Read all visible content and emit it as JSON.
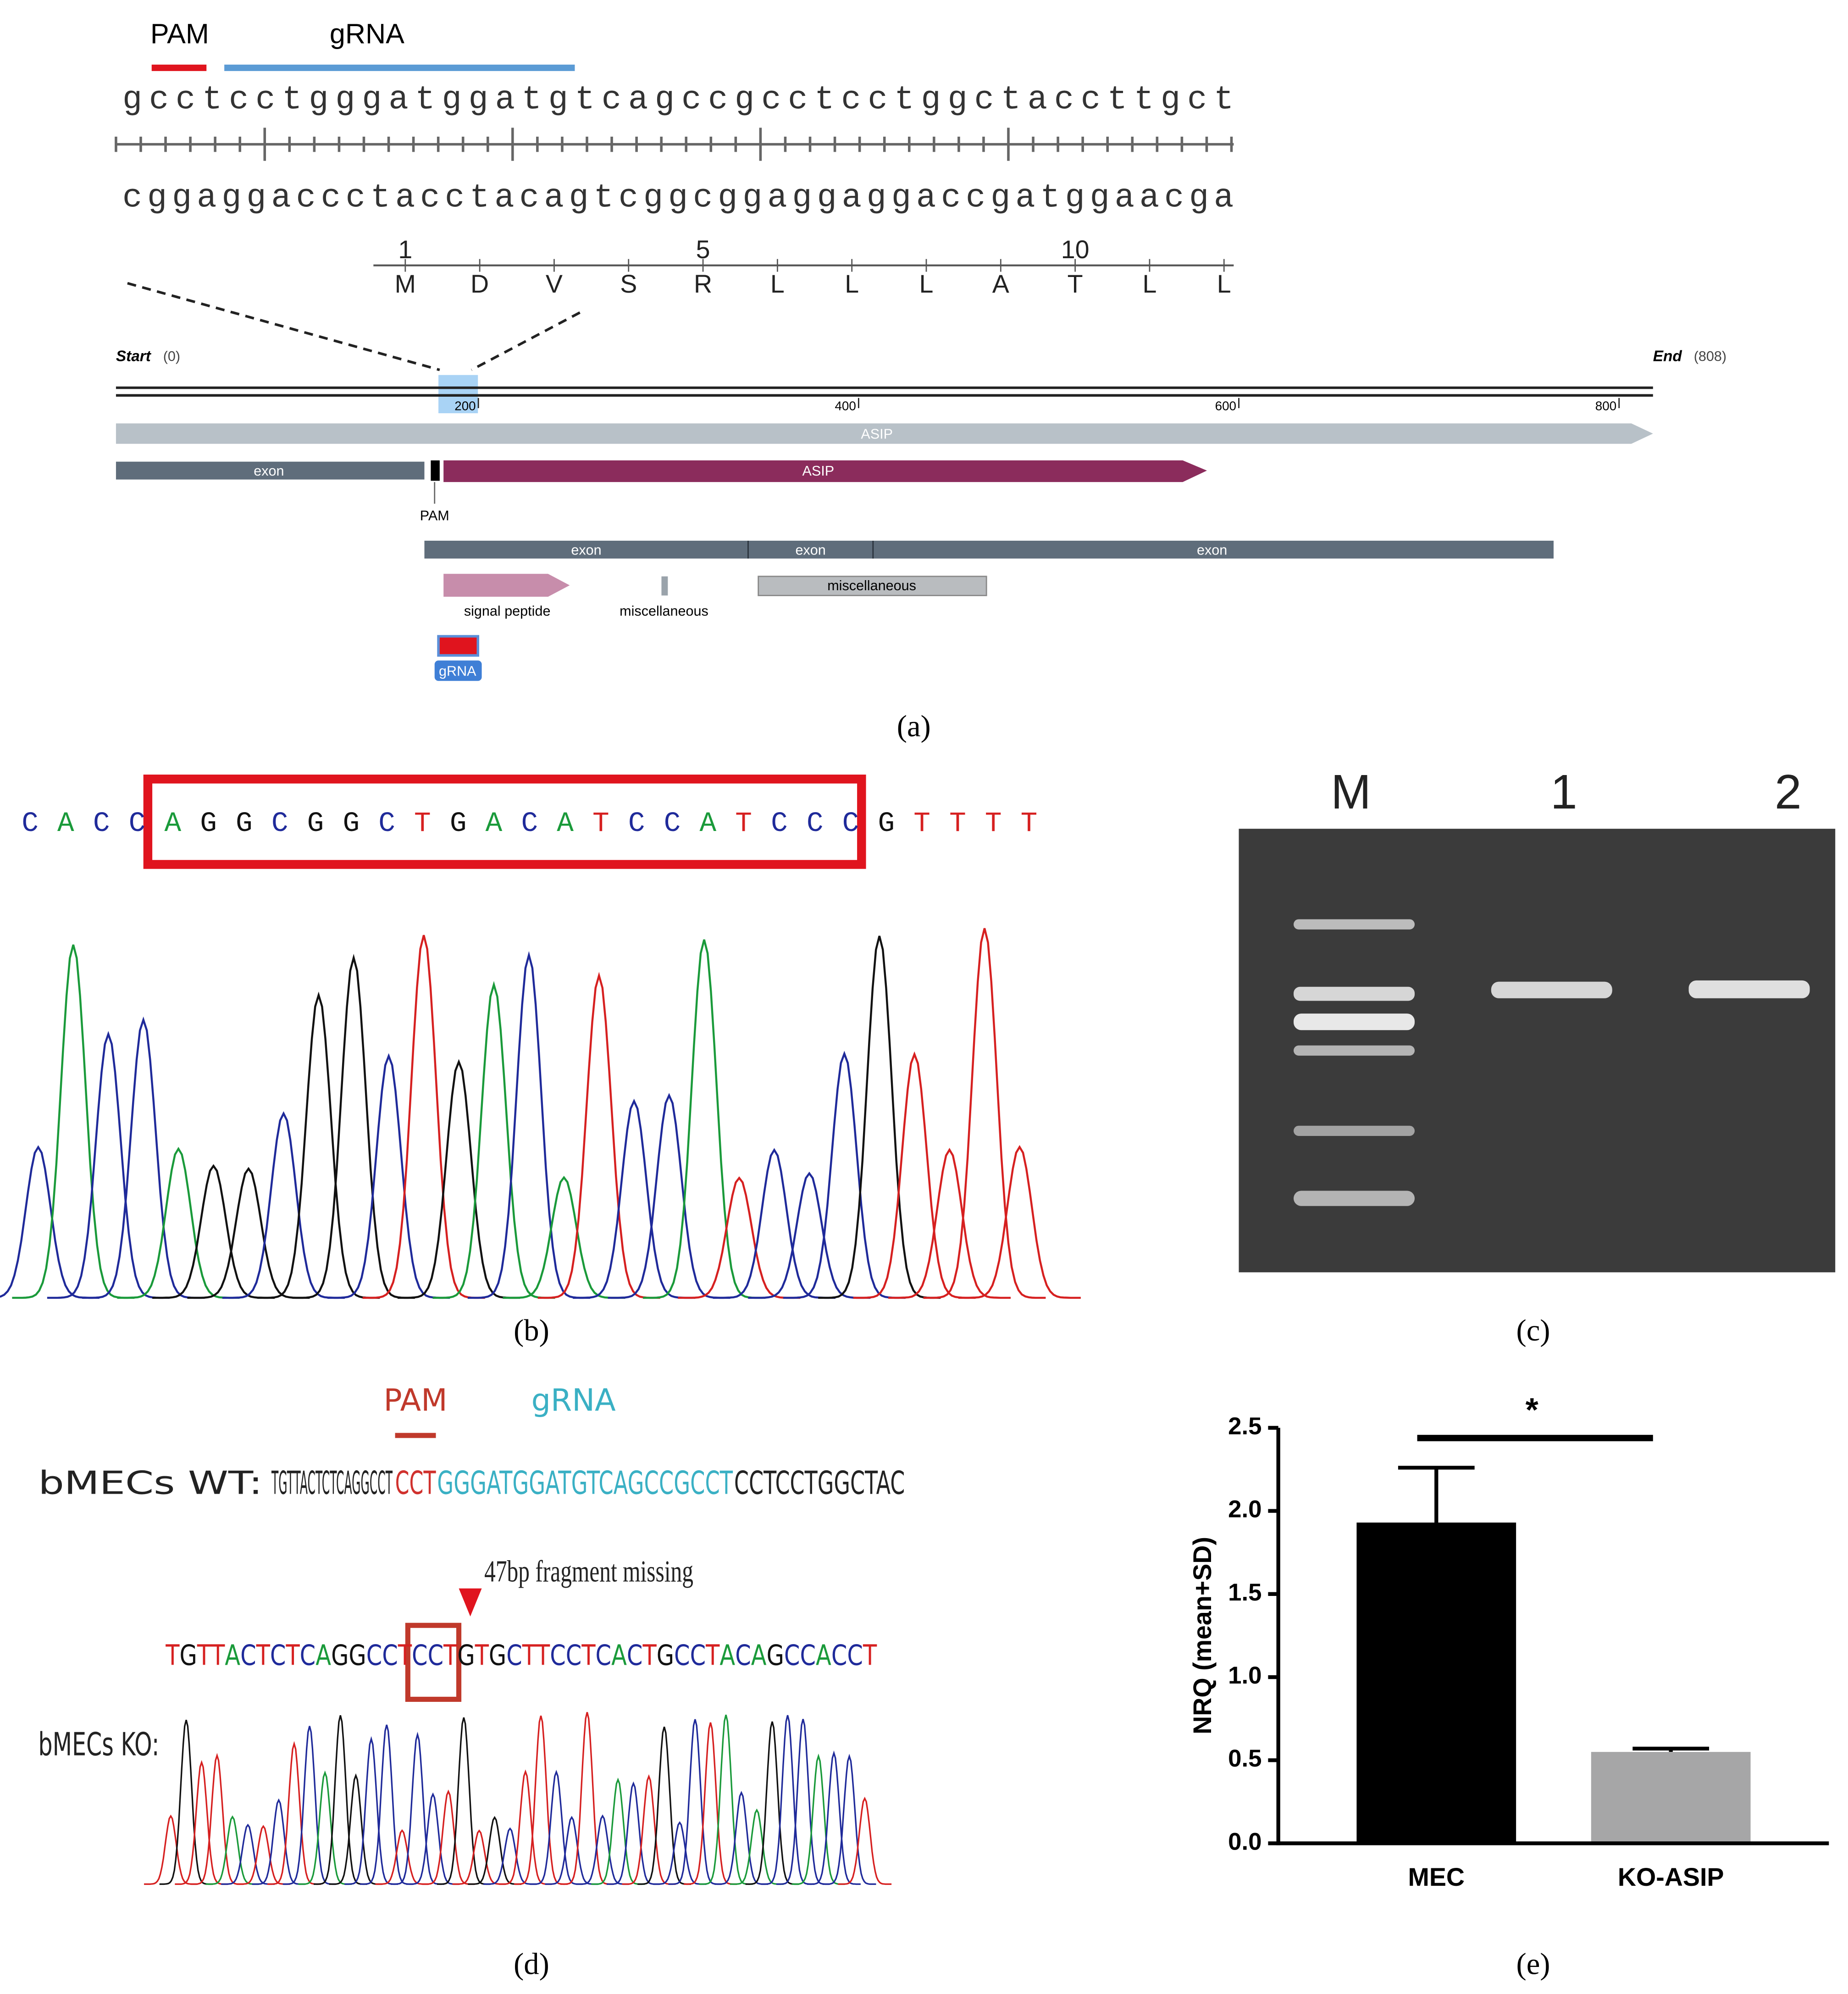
{
  "panel_a": {
    "pam_label": "PAM",
    "grna_label": "gRNA",
    "top_strand": "gcctcctgggatggatgtcagccgcctcctggctaccttgct",
    "bottom_strand": "cggaggaccctacctacagtcggcggaggaggaccgatggaacga",
    "residue_numbers": [
      1,
      5,
      10
    ],
    "residues": [
      "M",
      "D",
      "V",
      "S",
      "R",
      "L",
      "L",
      "L",
      "A",
      "T",
      "L",
      "L"
    ],
    "start_label": "Start",
    "start_value": "(0)",
    "end_label": "End",
    "end_value": "(808)",
    "ruler_ticks": [
      200,
      400,
      600,
      800
    ],
    "features": {
      "asip_gene": "ASIP",
      "exon_1": "exon",
      "asip_cds": "ASIP",
      "pam": "PAM",
      "exon_2": "exon",
      "exon_3": "exon",
      "exon_4": "exon",
      "signal_peptide": "signal peptide",
      "misc_1": "miscellaneous",
      "misc_2": "miscellaneous",
      "grna": "gRNA"
    },
    "caption": "(a)"
  },
  "panel_b": {
    "sequence": "CACCAGGCGGCTGACATCCATCCCGTTTT",
    "caption": "(b)"
  },
  "panel_c": {
    "lanes": [
      "M",
      "1",
      "2"
    ],
    "caption": "(c)"
  },
  "panel_d": {
    "pam_label": "PAM",
    "grna_label": "gRNA",
    "wt_label": "bMECs WT:",
    "wt_sequence": {
      "prefix": "TGTTACTCTCAGGCCT",
      "pam": "CCT",
      "grna": "GGGATGGATGTCAGCCGCCT",
      "suffix": "CCTCCTGGCTAC"
    },
    "annotation": "47bp fragment missing",
    "ko_sequence": "TGTTACTCTCAGGCCTCCTGTGCTTCCTCACTGCCTACAGCCACCT",
    "ko_label": "bMECs KO:",
    "caption": "(d)"
  },
  "panel_e": {
    "caption": "(e)"
  },
  "chart_data": {
    "type": "bar",
    "ylabel": "NRQ (mean+SD)",
    "categories": [
      "MEC",
      "KO-ASIP"
    ],
    "values": [
      1.93,
      0.55
    ],
    "errors": [
      0.33,
      0.02
    ],
    "colors": [
      "#000000",
      "#a6a6a7"
    ],
    "ylim": [
      0,
      2.5
    ],
    "yticks": [
      {
        "value": 0,
        "label": "0.0"
      },
      0.5,
      {
        "value": 1,
        "label": "1.0"
      },
      1.5,
      {
        "value": 2,
        "label": "2.0"
      },
      2.5
    ],
    "annotation": "*"
  }
}
